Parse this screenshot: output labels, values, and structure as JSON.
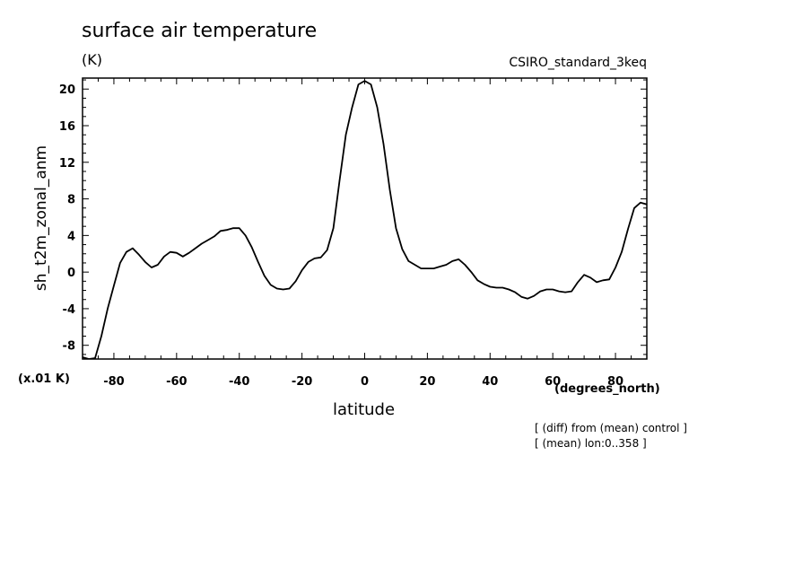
{
  "chart_data": {
    "type": "line",
    "title": "surface air temperature",
    "units_label": "(K)",
    "experiment_label": "CSIRO_standard_3keq",
    "ylabel": "sh_t2m_zonal_anm",
    "xlabel": "latitude",
    "x_units_label": "(degrees_north)",
    "y_scale_label": "(x.01 K)",
    "notes": [
      "[ (diff) from (mean) control ]",
      "[ (mean) lon:0..358 ]"
    ],
    "xlim": [
      -90,
      90
    ],
    "ylim": [
      -9.5,
      21.2
    ],
    "x_ticks": [
      -80,
      -60,
      -40,
      -20,
      0,
      20,
      40,
      60,
      80
    ],
    "y_ticks": [
      -8,
      -4,
      0,
      4,
      8,
      12,
      16,
      20
    ],
    "grid": false,
    "series": [
      {
        "x": [
          -90,
          -88,
          -86,
          -84,
          -82,
          -80,
          -78,
          -76,
          -74,
          -72,
          -70,
          -68,
          -66,
          -64,
          -62,
          -60,
          -58,
          -56,
          -54,
          -52,
          -50,
          -48,
          -46,
          -44,
          -42,
          -40,
          -38,
          -36,
          -34,
          -32,
          -30,
          -28,
          -26,
          -24,
          -22,
          -20,
          -18,
          -16,
          -14,
          -12,
          -10,
          -8,
          -6,
          -4,
          -2,
          0,
          2,
          4,
          6,
          8,
          10,
          12,
          14,
          16,
          18,
          20,
          22,
          24,
          26,
          28,
          30,
          32,
          34,
          36,
          38,
          40,
          42,
          44,
          46,
          48,
          50,
          52,
          54,
          56,
          58,
          60,
          62,
          64,
          66,
          68,
          70,
          72,
          74,
          76,
          78,
          80,
          82,
          84,
          86,
          88,
          90
        ],
        "values": [
          -9.3,
          -9.5,
          -9.4,
          -7.0,
          -4.0,
          -1.5,
          1.0,
          2.2,
          2.6,
          1.9,
          1.1,
          0.5,
          0.8,
          1.7,
          2.2,
          2.1,
          1.7,
          2.1,
          2.6,
          3.1,
          3.5,
          3.9,
          4.5,
          4.6,
          4.8,
          4.8,
          4.0,
          2.7,
          1.1,
          -0.4,
          -1.4,
          -1.8,
          -1.9,
          -1.8,
          -1.0,
          0.2,
          1.1,
          1.5,
          1.6,
          2.4,
          4.8,
          10.0,
          15.0,
          18.0,
          20.5,
          20.9,
          20.5,
          18.0,
          14.0,
          9.0,
          4.8,
          2.5,
          1.2,
          0.8,
          0.4,
          0.4,
          0.4,
          0.6,
          0.8,
          1.2,
          1.4,
          0.8,
          0.0,
          -0.9,
          -1.3,
          -1.6,
          -1.7,
          -1.7,
          -1.9,
          -2.2,
          -2.7,
          -2.9,
          -2.6,
          -2.1,
          -1.9,
          -1.9,
          -2.1,
          -2.2,
          -2.1,
          -1.1,
          -0.3,
          -0.6,
          -1.1,
          -0.9,
          -0.8,
          0.5,
          2.2,
          4.7,
          7.0,
          7.6,
          7.4
        ]
      }
    ]
  }
}
